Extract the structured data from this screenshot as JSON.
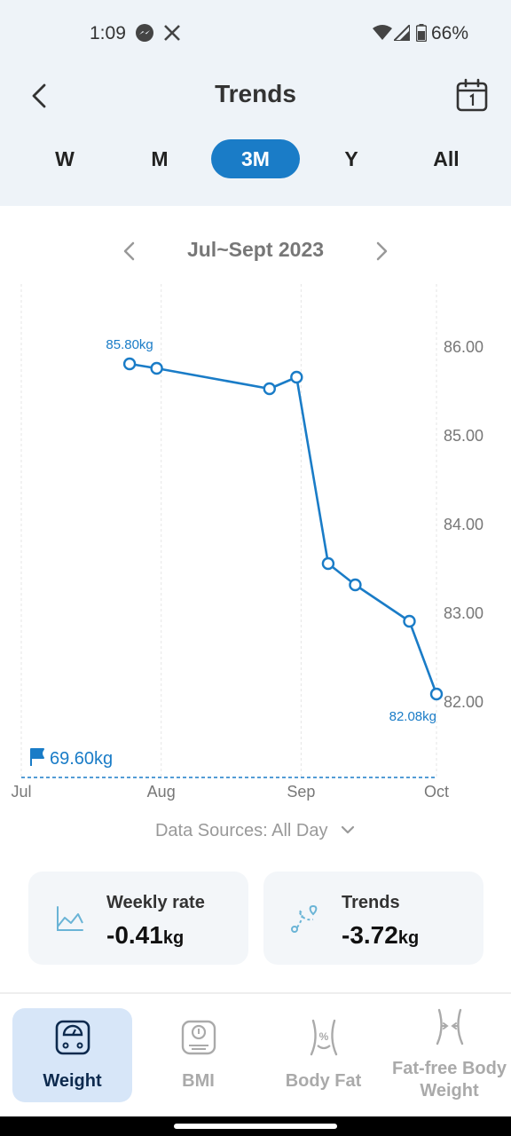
{
  "status_bar": {
    "time": "1:09",
    "battery": "66%"
  },
  "header": {
    "title": "Trends"
  },
  "periods": [
    {
      "label": "W",
      "active": false
    },
    {
      "label": "M",
      "active": false
    },
    {
      "label": "3M",
      "active": true
    },
    {
      "label": "Y",
      "active": false
    },
    {
      "label": "All",
      "active": false
    }
  ],
  "range": {
    "label": "Jul~Sept 2023"
  },
  "chart_data": {
    "type": "line",
    "x_labels": [
      "Jul",
      "Aug",
      "Sep",
      "Oct"
    ],
    "y_ticks": [
      "86.00",
      "85.00",
      "84.00",
      "83.00",
      "82.00"
    ],
    "ylim": [
      82,
      86
    ],
    "series": [
      {
        "points": [
          {
            "x": "2023-07-25",
            "y": 85.8
          },
          {
            "x": "2023-07-31",
            "y": 85.75
          },
          {
            "x": "2023-08-25",
            "y": 85.52
          },
          {
            "x": "2023-08-31",
            "y": 85.65
          },
          {
            "x": "2023-09-07",
            "y": 83.55
          },
          {
            "x": "2023-09-13",
            "y": 83.31
          },
          {
            "x": "2023-09-25",
            "y": 82.9
          },
          {
            "x": "2023-10-01",
            "y": 82.08
          }
        ]
      }
    ],
    "max_label": "85.80kg",
    "min_label": "82.08kg",
    "goal_label": "69.60kg",
    "line_color": "#1a7cc7",
    "grid": "vertical dashed"
  },
  "data_sources": "Data Sources: All Day",
  "cards": [
    {
      "label": "Weekly rate",
      "value": "-0.41",
      "unit": "kg",
      "icon": "line-chart-icon"
    },
    {
      "label": "Trends",
      "value": "-3.72",
      "unit": "kg",
      "icon": "trend-icon"
    }
  ],
  "nav": [
    {
      "label": "Weight",
      "active": true,
      "icon": "scale-icon"
    },
    {
      "label": "BMI",
      "active": false,
      "icon": "bmi-scale-icon"
    },
    {
      "label": "Body Fat",
      "active": false,
      "icon": "body-fat-icon"
    },
    {
      "label": "Fat-free Body Weight",
      "active": false,
      "icon": "fat-free-icon"
    }
  ],
  "colors": {
    "accent": "#1a7cc7",
    "header_bg": "#eef3f8",
    "nav_active_bg": "#d7e6f8"
  }
}
